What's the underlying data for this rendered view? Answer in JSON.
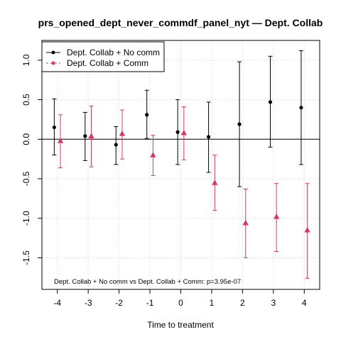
{
  "chart_data": {
    "type": "scatter",
    "title": "prs_opened_dept_never_commdf_panel_nyt — Dept. Collab",
    "xlabel": "Time to treatment",
    "ylabel": "",
    "x_ticks": [
      -4,
      -3,
      -2,
      -1,
      0,
      1,
      2,
      3,
      4
    ],
    "y_ticks": [
      -1.5,
      -1.0,
      -0.5,
      0.0,
      0.5,
      1.0
    ],
    "y_tick_labels": [
      "-1.5",
      "-1.0",
      "-0.5",
      "0.0",
      "0.5",
      "1.0"
    ],
    "xlim": [
      -4.5,
      4.5
    ],
    "ylim": [
      -1.9,
      1.25
    ],
    "grid": true,
    "zero_line": true,
    "legend_position": "top-left",
    "annotation": "Dept. Collab + No comm vs Dept. Collab + Comm: p=3.95e-07",
    "series": [
      {
        "name": "Dept. Collab + No comm",
        "color": "#000000",
        "marker": "circle",
        "x_offset": -0.1,
        "points": [
          {
            "x": -4,
            "y": 0.15,
            "lo": -0.2,
            "hi": 0.51
          },
          {
            "x": -3,
            "y": 0.04,
            "lo": -0.27,
            "hi": 0.34
          },
          {
            "x": -2,
            "y": -0.07,
            "lo": -0.32,
            "hi": 0.16
          },
          {
            "x": -1,
            "y": 0.31,
            "lo": 0.01,
            "hi": 0.62
          },
          {
            "x": 0,
            "y": 0.09,
            "lo": -0.32,
            "hi": 0.5
          },
          {
            "x": 1,
            "y": 0.03,
            "lo": -0.42,
            "hi": 0.47
          },
          {
            "x": 2,
            "y": 0.19,
            "lo": -0.6,
            "hi": 0.98
          },
          {
            "x": 3,
            "y": 0.47,
            "lo": -0.1,
            "hi": 1.05
          },
          {
            "x": 4,
            "y": 0.4,
            "lo": -0.32,
            "hi": 1.12
          }
        ]
      },
      {
        "name": "Dept. Collab + Comm",
        "color": "#d6395f",
        "marker": "triangle",
        "x_offset": 0.1,
        "points": [
          {
            "x": -4,
            "y": -0.02,
            "lo": -0.36,
            "hi": 0.31
          },
          {
            "x": -3,
            "y": 0.04,
            "lo": -0.35,
            "hi": 0.42
          },
          {
            "x": -2,
            "y": 0.07,
            "lo": -0.25,
            "hi": 0.37
          },
          {
            "x": -1,
            "y": -0.2,
            "lo": -0.46,
            "hi": 0.05
          },
          {
            "x": 0,
            "y": 0.08,
            "lo": -0.26,
            "hi": 0.41
          },
          {
            "x": 1,
            "y": -0.55,
            "lo": -0.9,
            "hi": -0.2
          },
          {
            "x": 2,
            "y": -1.06,
            "lo": -1.5,
            "hi": -0.63
          },
          {
            "x": 3,
            "y": -0.98,
            "lo": -1.42,
            "hi": -0.56
          },
          {
            "x": 4,
            "y": -1.15,
            "lo": -1.76,
            "hi": -0.56
          }
        ]
      }
    ]
  }
}
